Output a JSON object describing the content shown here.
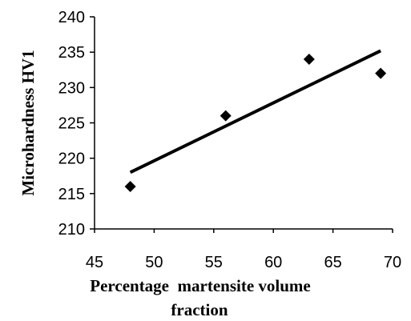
{
  "chart_data": {
    "type": "scatter",
    "title": "",
    "xlabel": "Percentage  martensite volume fraction",
    "xlabel_lines": [
      "Percentage  martensite volume",
      "fraction"
    ],
    "ylabel": "Microhardness HV1",
    "xlim": [
      45,
      70
    ],
    "ylim": [
      210,
      240
    ],
    "x_ticks": [
      45,
      50,
      55,
      60,
      65,
      70
    ],
    "y_ticks": [
      210,
      215,
      220,
      225,
      230,
      235,
      240
    ],
    "x_tick_labels": [
      "45",
      "50",
      "55",
      "60",
      "65",
      "70"
    ],
    "y_tick_labels": [
      "210",
      "215",
      "220",
      "225",
      "230",
      "235",
      "240"
    ],
    "grid": false,
    "legend": "none",
    "marker": "diamond",
    "series": [
      {
        "x": [
          48,
          56,
          63,
          69
        ],
        "y": [
          216,
          226,
          234,
          232
        ]
      }
    ],
    "trendline": {
      "type": "linear",
      "x": [
        48,
        69
      ],
      "y": [
        218,
        235.2
      ]
    }
  }
}
